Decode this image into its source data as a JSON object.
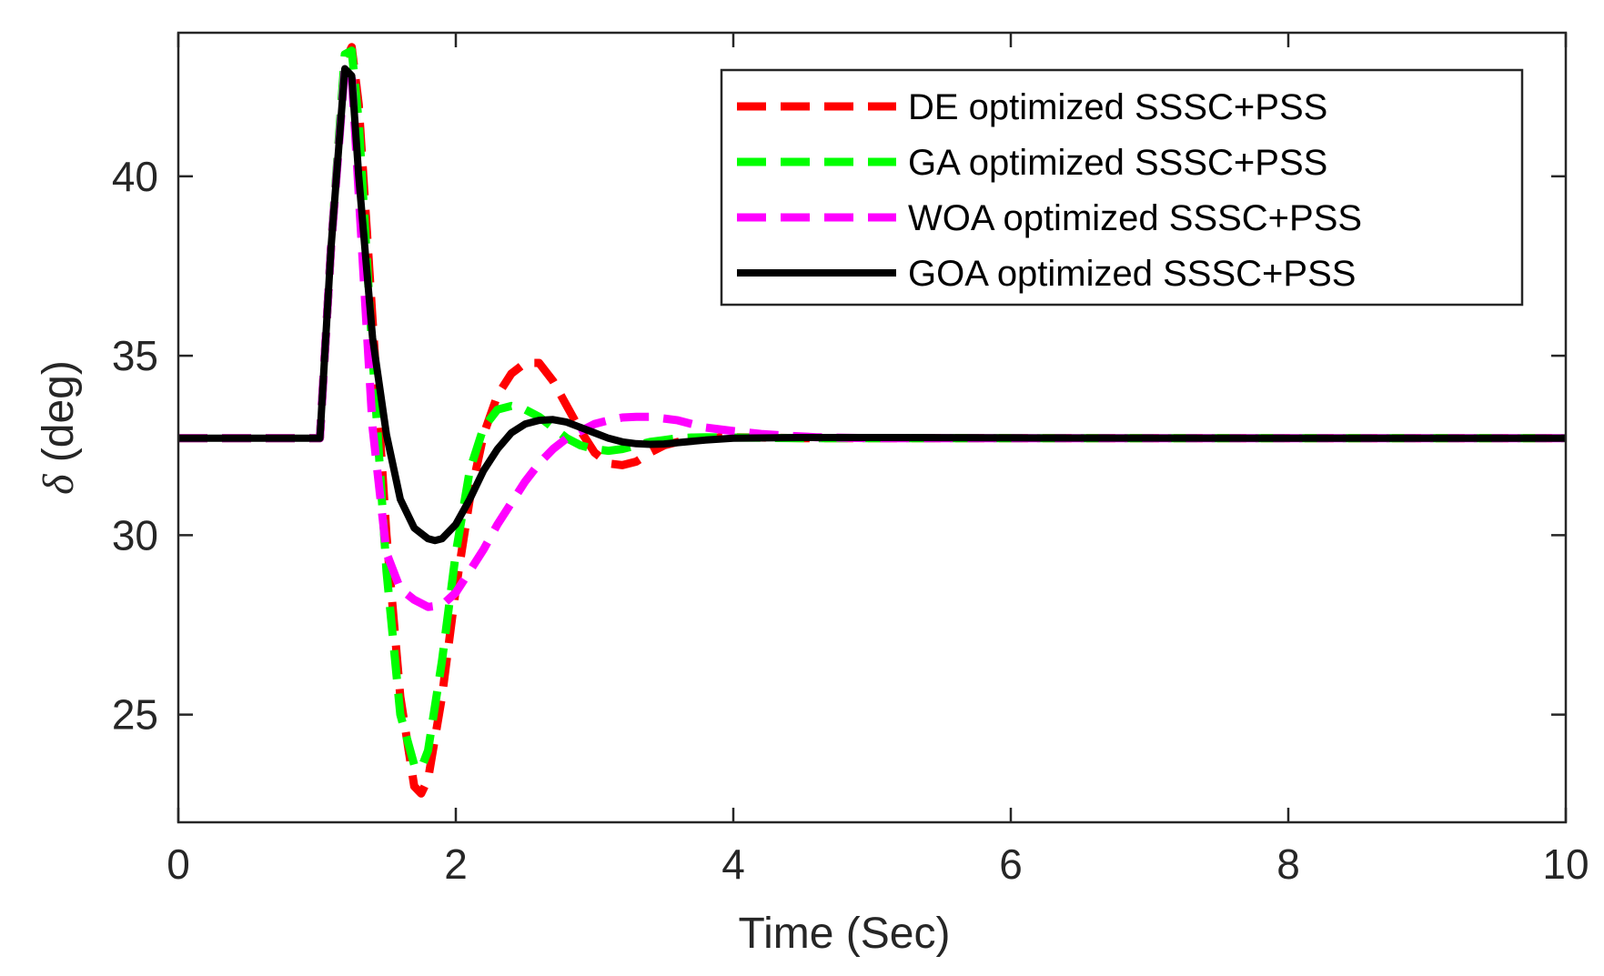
{
  "chart_data": {
    "type": "line",
    "title": "",
    "xlabel": "Time (Sec)",
    "ylabel_symbol": "δ",
    "ylabel_rest": " (deg)",
    "xlim": [
      0,
      10
    ],
    "ylim": [
      22,
      44
    ],
    "xticks": [
      0,
      2,
      4,
      6,
      8,
      10
    ],
    "yticks": [
      25,
      30,
      35,
      40
    ],
    "xtick_labels": [
      "0",
      "2",
      "4",
      "6",
      "8",
      "10"
    ],
    "ytick_labels": [
      "25",
      "30",
      "35",
      "40"
    ],
    "grid": false,
    "legend_position": "top-right",
    "series": [
      {
        "name": "DE optimized SSSC+PSS",
        "color": "#ff0000",
        "style": "dashed",
        "x": [
          0,
          1.02,
          1.1,
          1.2,
          1.25,
          1.3,
          1.4,
          1.5,
          1.6,
          1.7,
          1.75,
          1.8,
          1.9,
          2.0,
          2.1,
          2.2,
          2.3,
          2.4,
          2.5,
          2.6,
          2.7,
          2.8,
          2.9,
          3.0,
          3.1,
          3.2,
          3.3,
          3.4,
          3.5,
          3.6,
          3.7,
          3.8,
          3.9,
          4.0,
          4.2,
          4.5,
          5,
          6,
          8,
          10
        ],
        "y": [
          32.7,
          32.7,
          38.0,
          43.2,
          43.6,
          42.0,
          36.0,
          30.0,
          25.5,
          23.0,
          22.8,
          23.2,
          25.5,
          28.5,
          31.0,
          32.8,
          33.9,
          34.5,
          34.8,
          34.8,
          34.3,
          33.6,
          32.9,
          32.3,
          32.0,
          31.95,
          32.05,
          32.3,
          32.5,
          32.6,
          32.65,
          32.7,
          32.72,
          32.73,
          32.72,
          32.7,
          32.7,
          32.7,
          32.7,
          32.7
        ]
      },
      {
        "name": "GA optimized SSSC+PSS",
        "color": "#00ff00",
        "style": "dashed",
        "x": [
          0,
          1.02,
          1.1,
          1.2,
          1.25,
          1.3,
          1.4,
          1.5,
          1.6,
          1.7,
          1.75,
          1.8,
          1.9,
          2.0,
          2.1,
          2.2,
          2.3,
          2.4,
          2.5,
          2.6,
          2.7,
          2.8,
          2.9,
          3.0,
          3.1,
          3.2,
          3.3,
          3.4,
          3.5,
          3.6,
          3.7,
          3.8,
          4.0,
          4.5,
          5,
          6,
          8,
          10
        ],
        "y": [
          32.7,
          32.7,
          38.0,
          43.4,
          43.5,
          41.5,
          35.0,
          29.0,
          25.0,
          23.6,
          23.5,
          24.0,
          26.5,
          29.5,
          31.8,
          33.0,
          33.5,
          33.6,
          33.5,
          33.3,
          33.0,
          32.7,
          32.5,
          32.4,
          32.35,
          32.4,
          32.5,
          32.6,
          32.65,
          32.7,
          32.72,
          32.73,
          32.72,
          32.7,
          32.7,
          32.7,
          32.7,
          32.7
        ]
      },
      {
        "name": "WOA optimized SSSC+PSS",
        "color": "#ff00ff",
        "style": "dashed",
        "x": [
          0,
          1.02,
          1.1,
          1.2,
          1.25,
          1.3,
          1.4,
          1.5,
          1.6,
          1.7,
          1.8,
          1.9,
          2.0,
          2.1,
          2.2,
          2.3,
          2.4,
          2.5,
          2.6,
          2.7,
          2.8,
          2.9,
          3.0,
          3.1,
          3.2,
          3.3,
          3.4,
          3.5,
          3.6,
          3.7,
          3.8,
          3.9,
          4.0,
          4.2,
          4.4,
          4.6,
          5,
          6,
          8,
          10
        ],
        "y": [
          32.7,
          32.7,
          38.0,
          43.0,
          42.8,
          39.5,
          33.0,
          29.5,
          28.5,
          28.2,
          28.0,
          28.05,
          28.4,
          29.0,
          29.6,
          30.3,
          30.9,
          31.5,
          32.0,
          32.4,
          32.7,
          32.9,
          33.1,
          33.2,
          33.28,
          33.3,
          33.3,
          33.25,
          33.2,
          33.1,
          33.0,
          32.95,
          32.9,
          32.82,
          32.77,
          32.73,
          32.7,
          32.7,
          32.7,
          32.7
        ]
      },
      {
        "name": "GOA optimized SSSC+PSS",
        "color": "#000000",
        "style": "solid",
        "x": [
          0,
          1.02,
          1.1,
          1.2,
          1.25,
          1.3,
          1.4,
          1.5,
          1.6,
          1.7,
          1.8,
          1.85,
          1.9,
          2.0,
          2.1,
          2.2,
          2.3,
          2.4,
          2.5,
          2.6,
          2.7,
          2.8,
          2.9,
          3.0,
          3.1,
          3.2,
          3.3,
          3.4,
          3.5,
          3.6,
          3.8,
          4.0,
          4.5,
          5,
          6,
          8,
          10
        ],
        "y": [
          32.7,
          32.7,
          38.0,
          43.0,
          42.8,
          40.0,
          35.5,
          32.8,
          31.0,
          30.2,
          29.9,
          29.85,
          29.9,
          30.3,
          31.0,
          31.8,
          32.4,
          32.85,
          33.1,
          33.2,
          33.22,
          33.15,
          33.0,
          32.85,
          32.7,
          32.6,
          32.55,
          32.53,
          32.54,
          32.58,
          32.65,
          32.7,
          32.72,
          32.72,
          32.71,
          32.7,
          32.7
        ]
      }
    ]
  }
}
